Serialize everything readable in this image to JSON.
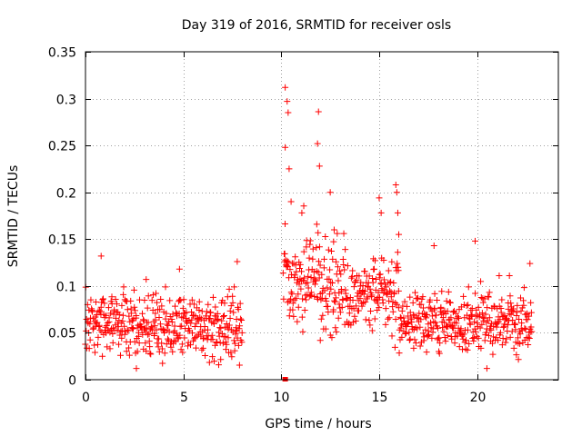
{
  "chart_data": {
    "type": "scatter",
    "title": "Day 319 of 2016, SRMTID for receiver osls",
    "xlabel": "GPS time / hours",
    "ylabel": "SRMTID / TECUs",
    "xlim": [
      0,
      24.15
    ],
    "ylim": [
      0,
      0.35
    ],
    "xticks": [
      0,
      5,
      10,
      15,
      20
    ],
    "yticks": [
      0,
      0.05,
      0.1,
      0.15,
      0.2,
      0.25,
      0.3,
      0.35
    ],
    "grid": true,
    "marker": "+",
    "color": "#ff0000",
    "series": [
      {
        "name": "SRMTID",
        "segments": [
          {
            "x_start": 0.0,
            "x_end": 8.0,
            "step": 0.02,
            "y_mean": 0.058,
            "y_spread": 0.03,
            "y_min": 0.012,
            "y_max": 0.132
          },
          {
            "x_start": 10.1,
            "x_end": 12.0,
            "step": 0.02,
            "y_mean": 0.11,
            "y_spread": 0.045,
            "y_min": 0.04,
            "y_max": 0.312
          },
          {
            "x_start": 12.0,
            "x_end": 16.0,
            "step": 0.02,
            "y_mean": 0.09,
            "y_spread": 0.035,
            "y_min": 0.02,
            "y_max": 0.208
          },
          {
            "x_start": 16.0,
            "x_end": 22.8,
            "step": 0.02,
            "y_mean": 0.06,
            "y_spread": 0.028,
            "y_min": 0.012,
            "y_max": 0.148
          }
        ],
        "highlights": [
          {
            "x": 10.2,
            "y": 0.312
          },
          {
            "x": 10.3,
            "y": 0.297
          },
          {
            "x": 10.35,
            "y": 0.285
          },
          {
            "x": 10.2,
            "y": 0.248
          },
          {
            "x": 10.4,
            "y": 0.225
          },
          {
            "x": 10.5,
            "y": 0.19
          },
          {
            "x": 11.05,
            "y": 0.178
          },
          {
            "x": 11.9,
            "y": 0.286
          },
          {
            "x": 11.85,
            "y": 0.252
          },
          {
            "x": 11.95,
            "y": 0.228
          },
          {
            "x": 12.5,
            "y": 0.2
          },
          {
            "x": 12.7,
            "y": 0.16
          },
          {
            "x": 15.0,
            "y": 0.194
          },
          {
            "x": 15.1,
            "y": 0.178
          },
          {
            "x": 15.85,
            "y": 0.208
          },
          {
            "x": 15.9,
            "y": 0.2
          },
          {
            "x": 15.95,
            "y": 0.178
          },
          {
            "x": 16.0,
            "y": 0.155
          },
          {
            "x": 17.8,
            "y": 0.143
          },
          {
            "x": 19.9,
            "y": 0.148
          },
          {
            "x": 0.8,
            "y": 0.132
          },
          {
            "x": 3.1,
            "y": 0.107
          },
          {
            "x": 4.8,
            "y": 0.118
          },
          {
            "x": 7.75,
            "y": 0.126
          },
          {
            "x": 22.7,
            "y": 0.124
          },
          {
            "x": 2.6,
            "y": 0.012
          },
          {
            "x": 20.5,
            "y": 0.012
          }
        ],
        "gap_marker": {
          "x": 10.2,
          "y": 0.0
        }
      }
    ]
  }
}
